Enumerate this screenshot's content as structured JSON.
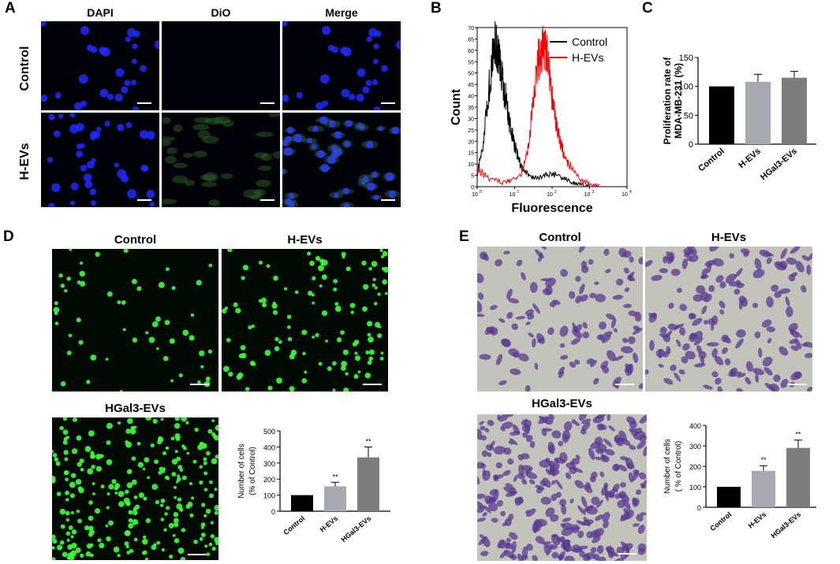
{
  "panel_a": {
    "label": "A",
    "columns": [
      "DAPI",
      "DiO",
      "Merge"
    ],
    "rows": [
      "Control",
      "H-EVs"
    ]
  },
  "panel_b": {
    "label": "B",
    "xlabel": "Fluorescence",
    "ylabel": "Count",
    "yticks": [
      "0",
      "5",
      "10",
      "15",
      "20",
      "25",
      "30",
      "35",
      "40",
      "45",
      "50",
      "55",
      "60",
      "65",
      "70"
    ],
    "legend": [
      "Control",
      "H-EVs"
    ],
    "colors": {
      "Control": "#000000",
      "H-EVs": "#ff0000"
    }
  },
  "panel_c": {
    "label": "C",
    "ylabel_line1": "Proliferation rate of",
    "ylabel_line2": "MDA-MB-231 (%)"
  },
  "panel_d": {
    "label": "D",
    "titles": [
      "Control",
      "H-EVs",
      "HGal3-EVs"
    ],
    "ylabel_line1": "Number of cells",
    "ylabel_line2": "(% of Control)",
    "sig": "**"
  },
  "panel_e": {
    "label": "E",
    "titles": [
      "Control",
      "H-EVs",
      "HGal3-EVs"
    ],
    "ylabel_line1": "Number of cells",
    "ylabel_line2": "( % of Control)",
    "sig": "**"
  },
  "chart_data": [
    {
      "id": "B",
      "type": "line",
      "title": "",
      "xlabel": "Fluorescence",
      "ylabel": "Count",
      "x_scale": "log",
      "xlim": [
        1,
        10000
      ],
      "ylim": [
        0,
        70
      ],
      "xticks": [
        1,
        10,
        100,
        1000,
        10000
      ],
      "legend_position": "top-right",
      "series": [
        {
          "name": "Control",
          "x": [
            1,
            1.5,
            2,
            2.5,
            3,
            3.5,
            4,
            5,
            6,
            7,
            8,
            10,
            13,
            16,
            20,
            30,
            50,
            80,
            120,
            200,
            300,
            500,
            1000
          ],
          "y": [
            5,
            20,
            42,
            55,
            64,
            60,
            55,
            44,
            38,
            30,
            25,
            18,
            12,
            8,
            6,
            4,
            4,
            6,
            5,
            4,
            2,
            1,
            0
          ]
        },
        {
          "name": "H-EVs",
          "x": [
            1,
            2,
            5,
            10,
            15,
            20,
            25,
            30,
            40,
            50,
            60,
            70,
            80,
            100,
            120,
            150,
            200,
            300,
            500,
            1000,
            2000
          ],
          "y": [
            8,
            4,
            2,
            3,
            6,
            12,
            22,
            35,
            52,
            60,
            62,
            60,
            52,
            40,
            30,
            22,
            15,
            9,
            4,
            1,
            0
          ]
        }
      ]
    },
    {
      "id": "C",
      "type": "bar",
      "categories": [
        "Control",
        "H-EVs",
        "HGal3-EVs"
      ],
      "values": [
        100,
        108,
        115
      ],
      "errors": [
        0,
        13,
        11
      ],
      "ylabel": "Proliferation rate of MDA-MB-231 (%)",
      "ylim": [
        0,
        150
      ],
      "yticks": [
        0,
        50,
        100,
        150
      ],
      "colors": [
        "#000000",
        "#a9aab0",
        "#7d7d7d"
      ]
    },
    {
      "id": "D",
      "type": "bar",
      "categories": [
        "Control",
        "H-EVs",
        "HGal3-EVs"
      ],
      "values": [
        100,
        155,
        335
      ],
      "errors": [
        0,
        25,
        65
      ],
      "significance": [
        "",
        "**",
        "**"
      ],
      "ylabel": "Number of cells (% of Control)",
      "ylim": [
        0,
        500
      ],
      "yticks": [
        0,
        100,
        200,
        300,
        400,
        500
      ],
      "colors": [
        "#000000",
        "#a9aab0",
        "#7d7d7d"
      ]
    },
    {
      "id": "E",
      "type": "bar",
      "categories": [
        "Control",
        "H-EVs",
        "HGal3-EVs"
      ],
      "values": [
        100,
        178,
        290
      ],
      "errors": [
        0,
        25,
        38
      ],
      "significance": [
        "",
        "**",
        "**"
      ],
      "ylabel": "Number of cells ( % of Control)",
      "ylim": [
        0,
        400
      ],
      "yticks": [
        0,
        100,
        200,
        300,
        400
      ],
      "colors": [
        "#000000",
        "#a9aab0",
        "#7d7d7d"
      ]
    }
  ]
}
